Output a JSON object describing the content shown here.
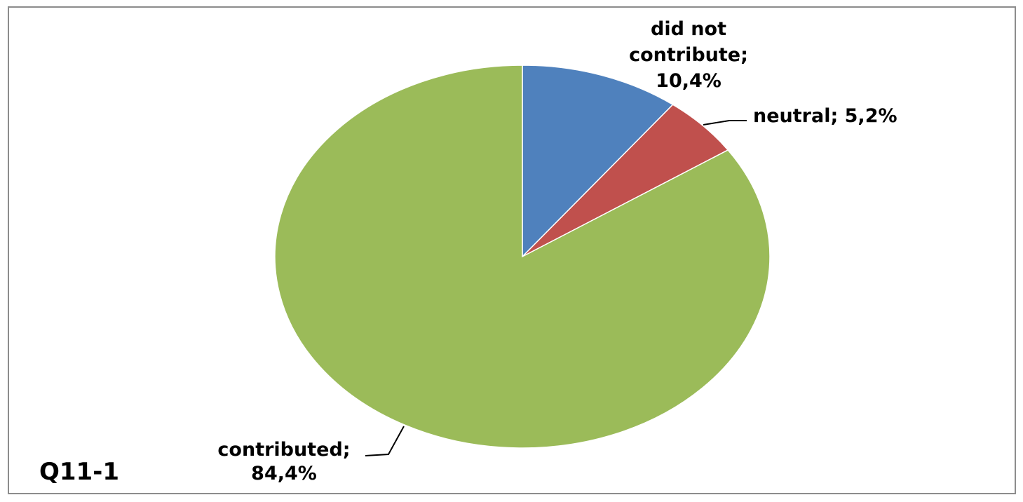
{
  "chart_data": {
    "type": "pie",
    "title": "",
    "corner_label": "Q11-1",
    "slices": [
      {
        "name": "did not contribute",
        "value": 10.4,
        "label_lines": [
          "did not",
          "contribute;",
          "10,4%"
        ],
        "color": "#4f81bd"
      },
      {
        "name": "neutral",
        "value": 5.2,
        "label_lines": [
          "neutral; 5,2%"
        ],
        "color": "#c0504d"
      },
      {
        "name": "contributed",
        "value": 84.4,
        "label_lines": [
          "contributed;",
          "84,4%"
        ],
        "color": "#9bbb59"
      }
    ],
    "start_angle": "12 o'clock",
    "direction": "clockwise",
    "legend": "none"
  }
}
